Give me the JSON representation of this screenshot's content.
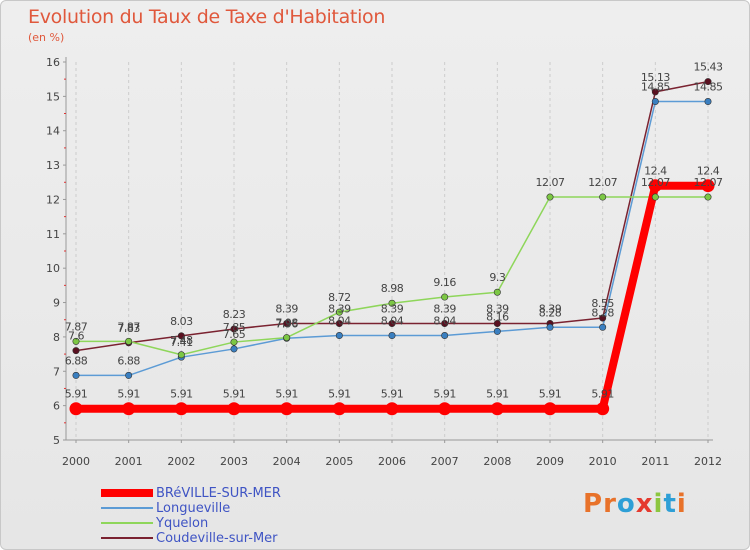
{
  "header": {
    "title": "Evolution du Taux de Taxe d'Habitation",
    "subtitle": "(en %)"
  },
  "logo": {
    "text": "Proxiti",
    "letter_colors": [
      "#e8722a",
      "#e8722a",
      "#2e9fd6",
      "#e53a2f",
      "#8cc63f",
      "#2e9fd6",
      "#e8722a"
    ]
  },
  "colors": {
    "background": "#e8e8e8",
    "axis_text": "#444444",
    "label_text": "#444444",
    "grid": "#cccccc"
  },
  "chart_data": {
    "type": "line",
    "title": "Evolution du Taux de Taxe d'Habitation",
    "subtitle": "(en %)",
    "x": [
      "2000",
      "2001",
      "2002",
      "2003",
      "2004",
      "2005",
      "2006",
      "2007",
      "2008",
      "2009",
      "2010",
      "2011",
      "2012"
    ],
    "ylim": [
      5,
      16
    ],
    "yticks": [
      "5",
      "6",
      "7",
      "8",
      "9",
      "10",
      "11",
      "12",
      "13",
      "14",
      "15",
      "16"
    ],
    "grid": "vertical-dashed",
    "legend_position": "bottom-left",
    "series": [
      {
        "name": "Coudeville-sur-Mer",
        "color": "#7a2230",
        "marker": "#5a1020",
        "width": 1.5,
        "values": [
          7.6,
          7.83,
          8.03,
          8.23,
          8.39,
          8.39,
          8.39,
          8.39,
          8.39,
          8.39,
          8.55,
          15.13,
          15.43
        ],
        "labels": [
          "7.6",
          "7.83",
          "8.03",
          "8.23",
          "8.39",
          "8.39",
          "8.39",
          "8.39",
          "8.39",
          "8.39",
          "8.55",
          "15.13",
          "15.43"
        ]
      },
      {
        "name": "Longueville",
        "color": "#5c9bd5",
        "marker": "#3a7fc0",
        "width": 1.5,
        "values": [
          6.88,
          6.88,
          7.41,
          7.65,
          7.96,
          8.04,
          8.04,
          8.04,
          8.16,
          8.28,
          8.28,
          14.85,
          14.85
        ],
        "labels": [
          "6.88",
          "6.88",
          "7.41",
          "7.65",
          "7.96",
          "8.04",
          "8.04",
          "8.04",
          "8.16",
          "8.28",
          "8.28",
          "14.85",
          "14.85"
        ]
      },
      {
        "name": "Yquelon",
        "color": "#8ed65a",
        "marker": "#7cc744",
        "width": 1.5,
        "values": [
          7.87,
          7.87,
          7.48,
          7.85,
          7.98,
          8.72,
          8.98,
          9.16,
          9.3,
          12.07,
          12.07,
          12.07,
          12.07
        ],
        "labels": [
          "7.87",
          "7.87",
          "7.48",
          "7.85",
          "7.98",
          "8.72",
          "8.98",
          "9.16",
          "9.3",
          "12.07",
          "12.07",
          "12.07",
          "12.07"
        ]
      },
      {
        "name": "BRéVILLE-SUR-MER",
        "color": "#ff0000",
        "marker": "#ff0000",
        "width": 8,
        "values": [
          5.91,
          5.91,
          5.91,
          5.91,
          5.91,
          5.91,
          5.91,
          5.91,
          5.91,
          5.91,
          5.91,
          12.4,
          12.4
        ],
        "labels": [
          "5.91",
          "5.91",
          "5.91",
          "5.91",
          "5.91",
          "5.91",
          "5.91",
          "5.91",
          "5.91",
          "5.91",
          "5.91",
          "12.4",
          "12.4"
        ]
      }
    ],
    "legend_order": [
      "BRéVILLE-SUR-MER",
      "Longueville",
      "Yquelon",
      "Coudeville-sur-Mer"
    ]
  }
}
